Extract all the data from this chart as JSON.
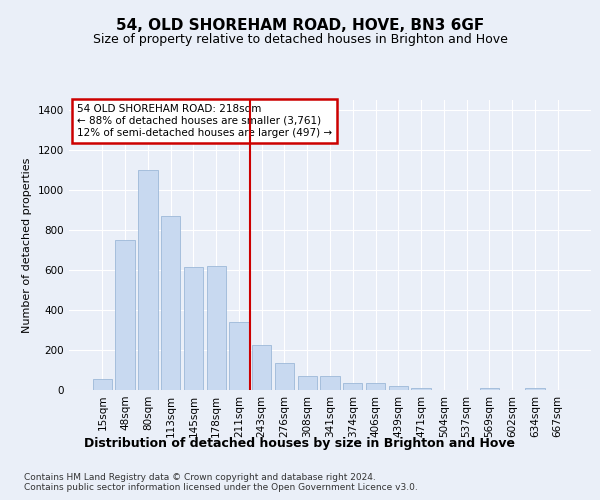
{
  "title": "54, OLD SHOREHAM ROAD, HOVE, BN3 6GF",
  "subtitle": "Size of property relative to detached houses in Brighton and Hove",
  "xlabel": "Distribution of detached houses by size in Brighton and Hove",
  "ylabel": "Number of detached properties",
  "categories": [
    "15sqm",
    "48sqm",
    "80sqm",
    "113sqm",
    "145sqm",
    "178sqm",
    "211sqm",
    "243sqm",
    "276sqm",
    "308sqm",
    "341sqm",
    "374sqm",
    "406sqm",
    "439sqm",
    "471sqm",
    "504sqm",
    "537sqm",
    "569sqm",
    "602sqm",
    "634sqm",
    "667sqm"
  ],
  "values": [
    55,
    750,
    1100,
    870,
    615,
    620,
    340,
    225,
    135,
    70,
    70,
    35,
    35,
    20,
    12,
    0,
    0,
    10,
    0,
    10,
    0
  ],
  "bar_color": "#c8d9f0",
  "bar_edgecolor": "#9db8d8",
  "vline_x_index": 6,
  "vline_color": "#cc0000",
  "annotation_text": "54 OLD SHOREHAM ROAD: 218sqm\n← 88% of detached houses are smaller (3,761)\n12% of semi-detached houses are larger (497) →",
  "annotation_box_edgecolor": "#cc0000",
  "ylim": [
    0,
    1450
  ],
  "yticks": [
    0,
    200,
    400,
    600,
    800,
    1000,
    1200,
    1400
  ],
  "bg_color": "#eaeff8",
  "plot_bg_color": "#eaeff8",
  "footer": "Contains HM Land Registry data © Crown copyright and database right 2024.\nContains public sector information licensed under the Open Government Licence v3.0.",
  "title_fontsize": 11,
  "subtitle_fontsize": 9,
  "xlabel_fontsize": 9,
  "ylabel_fontsize": 8,
  "tick_fontsize": 7.5,
  "footer_fontsize": 6.5
}
